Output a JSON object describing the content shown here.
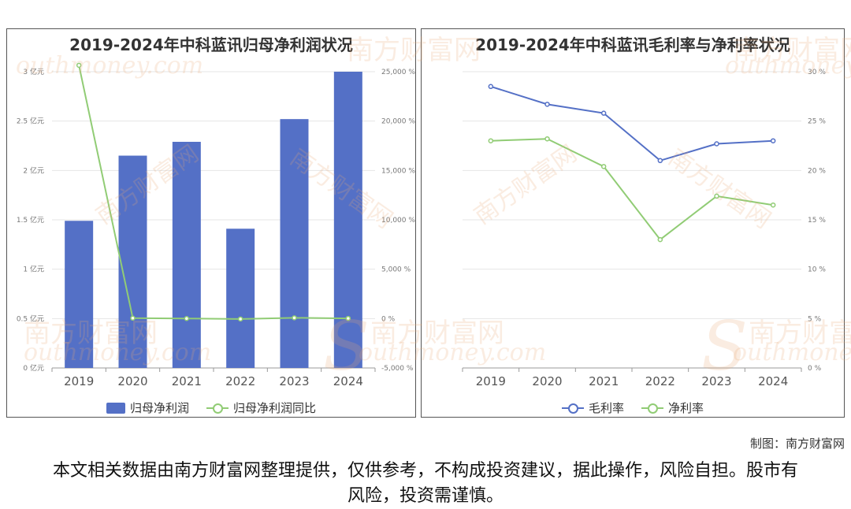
{
  "chart_data": [
    {
      "type": "bar+line",
      "title": "2019-2024年中科蓝讯归母净利润状况",
      "categories": [
        "2019",
        "2020",
        "2021",
        "2022",
        "2023",
        "2024"
      ],
      "y_left": {
        "ticks": [
          "0 亿元",
          "0.5 亿元",
          "1 亿元",
          "1.5 亿元",
          "2 亿元",
          "2.5 亿元",
          "3 亿元"
        ],
        "min": 0,
        "max": 3
      },
      "y_right": {
        "ticks": [
          "-5,000 %",
          "0 %",
          "5,000 %",
          "10,000 %",
          "15,000 %",
          "20,000 %",
          "25,000 %"
        ],
        "min": -5000,
        "max": 25000
      },
      "series": [
        {
          "name": "归母净利润",
          "type": "bar",
          "axis": "left",
          "color": "#5470c6",
          "values": [
            1.49,
            2.15,
            2.29,
            1.41,
            2.52,
            3.0
          ]
        },
        {
          "name": "归母净利润同比",
          "type": "line",
          "axis": "right",
          "color": "#91cc75",
          "values": [
            25650,
            44.5,
            6.3,
            -38.4,
            78.6,
            18.9
          ]
        }
      ],
      "grid": true,
      "legend": "bottom"
    },
    {
      "type": "line",
      "title": "2019-2024年中科蓝讯毛利率与净利率状况",
      "categories": [
        "2019",
        "2020",
        "2021",
        "2022",
        "2023",
        "2024"
      ],
      "y": {
        "ticks": [
          "0 %",
          "5 %",
          "10 %",
          "15 %",
          "20 %",
          "25 %",
          "30 %"
        ],
        "min": 0,
        "max": 30
      },
      "series": [
        {
          "name": "毛利率",
          "color": "#5470c6",
          "values": [
            28.5,
            26.7,
            25.8,
            21.0,
            22.7,
            23.0
          ]
        },
        {
          "name": "净利率",
          "color": "#91cc75",
          "values": [
            23.0,
            23.2,
            20.4,
            13.0,
            17.4,
            16.5
          ]
        }
      ],
      "grid": true,
      "legend": "bottom"
    }
  ],
  "watermark": {
    "cn": "南方财富网",
    "en": "outhmoney.com",
    "s": "S"
  },
  "credit": "制图：南方财富网",
  "disclaimer": "本文相关数据由南方财富网整理提供，仅供参考，不构成投资建议，据此操作，风险自担。股市有风险，投资需谨慎。"
}
